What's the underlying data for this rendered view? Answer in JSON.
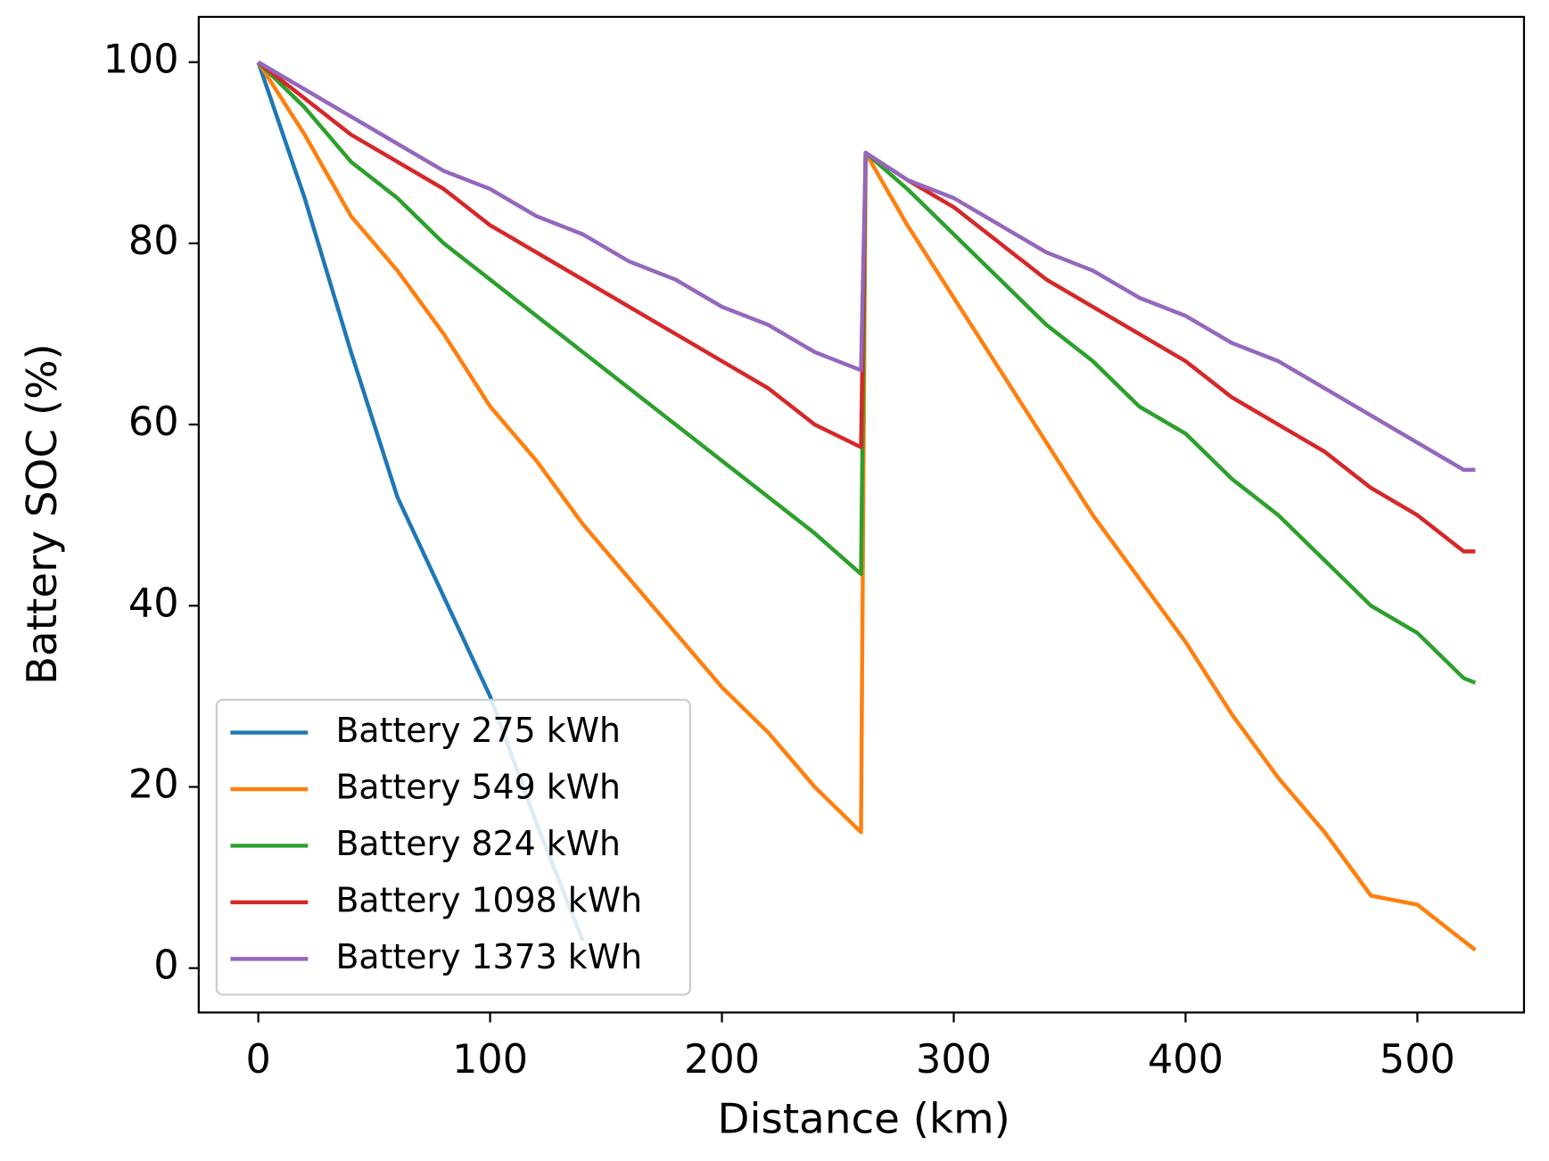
{
  "chart_data": {
    "type": "line",
    "xlabel": "Distance (km)",
    "ylabel": "Battery SOC (%)",
    "x": [
      0,
      20,
      40,
      60,
      80,
      100,
      120,
      140,
      160,
      180,
      200,
      220,
      240,
      260,
      262,
      280,
      300,
      320,
      340,
      360,
      380,
      400,
      420,
      440,
      460,
      480,
      500,
      520,
      525
    ],
    "series": [
      {
        "name": "Battery 275 kWh",
        "color": "#1f77b4",
        "values": [
          100,
          85,
          68,
          52,
          41,
          30,
          16,
          3,
          null,
          null,
          null,
          null,
          null,
          null,
          null,
          null,
          null,
          null,
          null,
          null,
          null,
          null,
          null,
          null,
          null,
          null,
          null,
          null,
          null
        ]
      },
      {
        "name": "Battery 549 kWh",
        "color": "#ff7f0e",
        "values": [
          100,
          92,
          83,
          77,
          70,
          62,
          56,
          49,
          43,
          37,
          31,
          26,
          20,
          15,
          90,
          82,
          74,
          66,
          58,
          50,
          43,
          36,
          28,
          21,
          15,
          8,
          7,
          3,
          2
        ]
      },
      {
        "name": "Battery 824 kWh",
        "color": "#2ca02c",
        "values": [
          100,
          95,
          89,
          85,
          80,
          76,
          72,
          68,
          64,
          60,
          56,
          52,
          48,
          43.5,
          90,
          86,
          81,
          76,
          71,
          67,
          62,
          59,
          54,
          50,
          45,
          40,
          37,
          32,
          31.5
        ]
      },
      {
        "name": "Battery 1098 kWh",
        "color": "#d62728",
        "values": [
          100,
          96,
          92,
          89,
          86,
          82,
          79,
          76,
          73,
          70,
          67,
          64,
          60,
          57.5,
          90,
          87,
          84,
          80,
          76,
          73,
          70,
          67,
          63,
          60,
          57,
          53,
          50,
          46,
          46
        ]
      },
      {
        "name": "Battery 1373 kWh",
        "color": "#9467bd",
        "values": [
          100,
          97,
          94,
          91,
          88,
          86,
          83,
          81,
          78,
          76,
          73,
          71,
          68,
          66,
          90,
          87,
          85,
          82,
          79,
          77,
          74,
          72,
          69,
          67,
          64,
          61,
          58,
          55,
          55
        ]
      }
    ],
    "xlim": [
      -25.7,
      546
    ],
    "ylim": [
      -4.9,
      105
    ],
    "xticks": [
      0,
      100,
      200,
      300,
      400,
      500
    ],
    "yticks": [
      0,
      20,
      40,
      60,
      80,
      100
    ],
    "legend": "lower left"
  }
}
